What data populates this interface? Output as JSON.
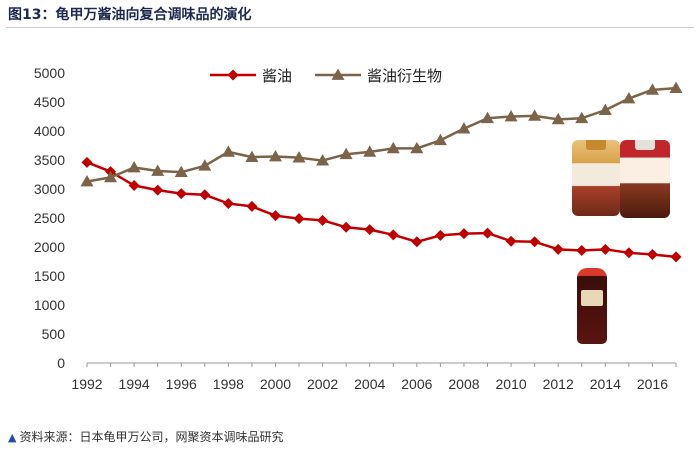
{
  "figure": {
    "title": "图13：龟甲万酱油向复合调味品的演化",
    "source_marker": "▲",
    "source": "资料来源：日本龟甲万公司，网聚资本调味品研究"
  },
  "chart_data": {
    "type": "line",
    "title": "图13：龟甲万酱油向复合调味品的演化",
    "xlabel": "",
    "ylabel": "",
    "x": [
      1992,
      1993,
      1994,
      1995,
      1996,
      1997,
      1998,
      1999,
      2000,
      2001,
      2002,
      2003,
      2004,
      2005,
      2006,
      2007,
      2008,
      2009,
      2010,
      2011,
      2012,
      2013,
      2014,
      2015,
      2016,
      2017
    ],
    "xlim": [
      1992,
      2017
    ],
    "xticks": [
      1992,
      1994,
      1996,
      1998,
      2000,
      2002,
      2004,
      2006,
      2008,
      2010,
      2012,
      2014,
      2016
    ],
    "ylim": [
      0,
      5000
    ],
    "yticks": [
      0,
      500,
      1000,
      1500,
      2000,
      2500,
      3000,
      3500,
      4000,
      4500,
      5000
    ],
    "grid": false,
    "legend": "top",
    "series": [
      {
        "name": "酱油",
        "color": "#c00000",
        "marker": "diamond",
        "values": [
          3460,
          3300,
          3060,
          2980,
          2920,
          2900,
          2750,
          2700,
          2540,
          2490,
          2460,
          2340,
          2300,
          2210,
          2090,
          2200,
          2230,
          2240,
          2100,
          2090,
          1960,
          1940,
          1960,
          1900,
          1870,
          1830
        ]
      },
      {
        "name": "酱油衍生物",
        "color": "#7b6449",
        "marker": "triangle",
        "values": [
          3130,
          3200,
          3370,
          3310,
          3290,
          3400,
          3640,
          3550,
          3560,
          3540,
          3490,
          3600,
          3640,
          3700,
          3700,
          3840,
          4040,
          4220,
          4250,
          4260,
          4200,
          4220,
          4360,
          4560,
          4710,
          4740
        ]
      }
    ]
  }
}
